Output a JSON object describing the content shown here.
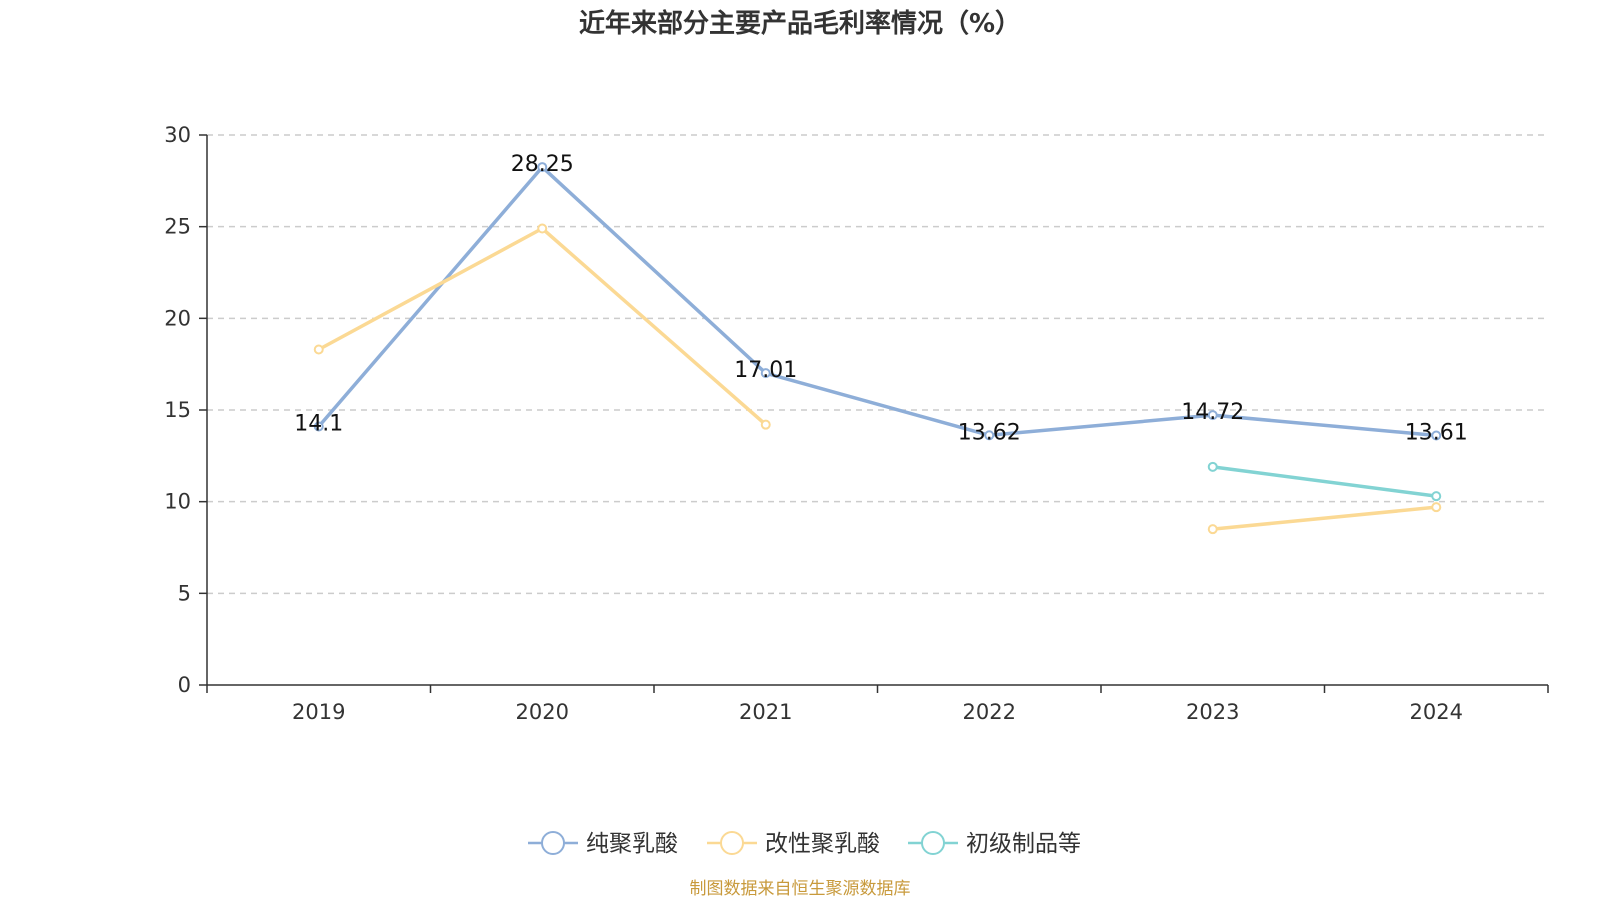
{
  "chart_data": {
    "type": "line",
    "title": "近年来部分主要产品毛利率情况（%）",
    "categories": [
      "2019",
      "2020",
      "2021",
      "2022",
      "2023",
      "2024"
    ],
    "ylim": [
      0,
      30
    ],
    "yticks": [
      0,
      5,
      10,
      15,
      20,
      25,
      30
    ],
    "grid": true,
    "legend_position": "bottom-center",
    "series": [
      {
        "name": "纯聚乳酸",
        "color": "#8eaed8",
        "values": [
          14.1,
          28.25,
          17.01,
          13.62,
          14.72,
          13.61
        ],
        "labels": [
          "14.1",
          "28.25",
          "17.01",
          "13.62",
          "14.72",
          "13.61"
        ]
      },
      {
        "name": "改性聚乳酸",
        "color": "#fbd994",
        "values": [
          18.3,
          24.9,
          14.2,
          null,
          8.5,
          9.7
        ]
      },
      {
        "name": "初级制品等",
        "color": "#82d3d3",
        "values": [
          null,
          null,
          null,
          null,
          11.9,
          10.3
        ]
      }
    ],
    "source": "制图数据来自恒生聚源数据库",
    "source_color": "#c89a3c"
  }
}
